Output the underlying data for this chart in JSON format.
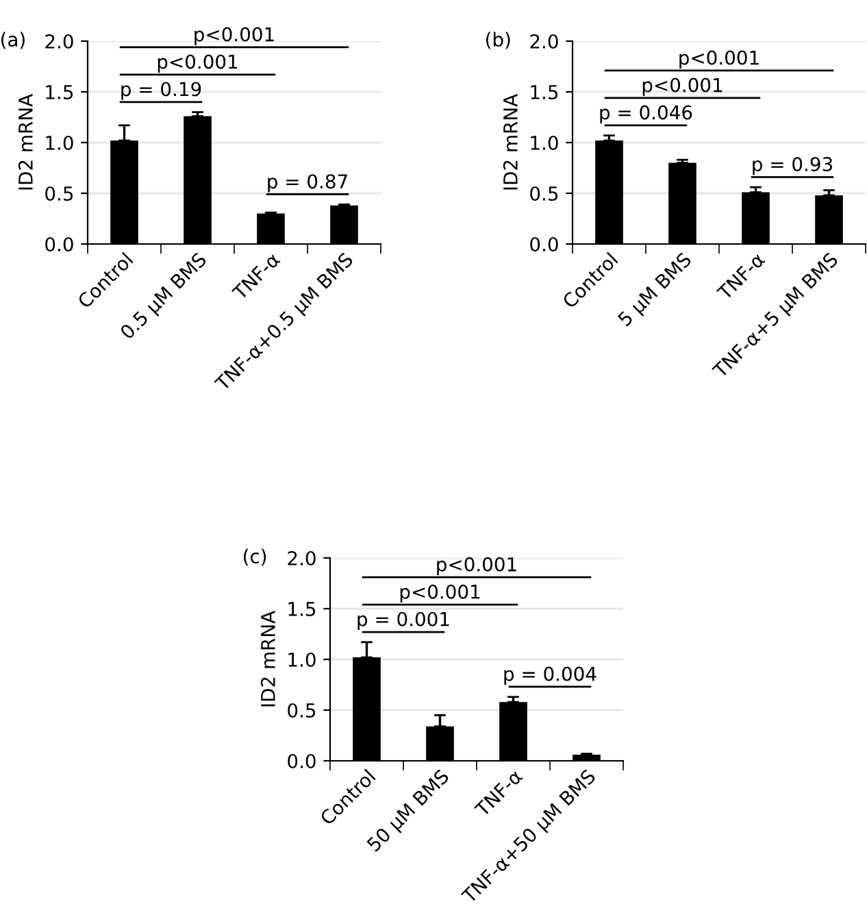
{
  "chart_data": [
    {
      "type": "bar",
      "title": "(a)",
      "ylabel": "ID2 mRNA",
      "categories": [
        "Control",
        "0.5 μM BMS",
        "TNF-α",
        "TNF-α+0.5 μM BMS"
      ],
      "values": [
        1.02,
        1.26,
        0.3,
        0.38
      ],
      "errors": [
        [
          1.02,
          1.17
        ],
        [
          1.26,
          1.3
        ],
        [
          0.3,
          0.31
        ],
        [
          0.38,
          0.39
        ]
      ],
      "color": "#000000",
      "ylim": [
        0,
        2
      ],
      "yticks": [
        {
          "value": 0,
          "label": "0.0"
        },
        {
          "value": 0.5,
          "label": "0.5"
        },
        {
          "value": 1,
          "label": "1.0"
        },
        {
          "value": 1.5,
          "label": "1.5"
        },
        {
          "value": 2,
          "label": "2.0"
        }
      ],
      "grid": "y",
      "annotations": [
        "p = 0.19",
        "p<0.001",
        "p<0.001",
        "p = 0.87"
      ]
    },
    {
      "type": "bar",
      "title": "(b)",
      "ylabel": "ID2 mRNA",
      "categories": [
        "Control",
        "5 μM BMS",
        "TNF-α",
        "TNF-α+5 μM BMS"
      ],
      "values": [
        1.02,
        0.8,
        0.51,
        0.48
      ],
      "errors": [
        [
          1.02,
          1.07
        ],
        [
          0.8,
          0.83
        ],
        [
          0.51,
          0.56
        ],
        [
          0.48,
          0.53
        ]
      ],
      "color": "#000000",
      "ylim": [
        0,
        2
      ],
      "yticks": [
        {
          "value": 0,
          "label": "0.0"
        },
        {
          "value": 0.5,
          "label": "0.5"
        },
        {
          "value": 1,
          "label": "1.0"
        },
        {
          "value": 1.5,
          "label": "1.5"
        },
        {
          "value": 2,
          "label": "2.0"
        }
      ],
      "grid": "y",
      "annotations": [
        "p = 0.046",
        "p<0.001",
        "p<0.001",
        "p = 0.93"
      ]
    },
    {
      "type": "bar",
      "title": "(c)",
      "ylabel": "ID2 mRNA",
      "categories": [
        "Control",
        "50 μM BMS",
        "TNF-α",
        "TNF-α+50 μM BMS"
      ],
      "values": [
        1.02,
        0.34,
        0.58,
        0.06
      ],
      "errors": [
        [
          1.02,
          1.17
        ],
        [
          0.34,
          0.45
        ],
        [
          0.58,
          0.63
        ],
        [
          0.06,
          0.07
        ]
      ],
      "color": "#000000",
      "ylim": [
        0,
        2
      ],
      "yticks": [
        {
          "value": 0,
          "label": "0.0"
        },
        {
          "value": 0.5,
          "label": "0.5"
        },
        {
          "value": 1,
          "label": "1.0"
        },
        {
          "value": 1.5,
          "label": "1.5"
        },
        {
          "value": 2,
          "label": "2.0"
        }
      ],
      "grid": "y",
      "annotations": [
        "p = 0.001",
        "p<0.001",
        "p<0.001",
        "p = 0.004"
      ]
    }
  ]
}
